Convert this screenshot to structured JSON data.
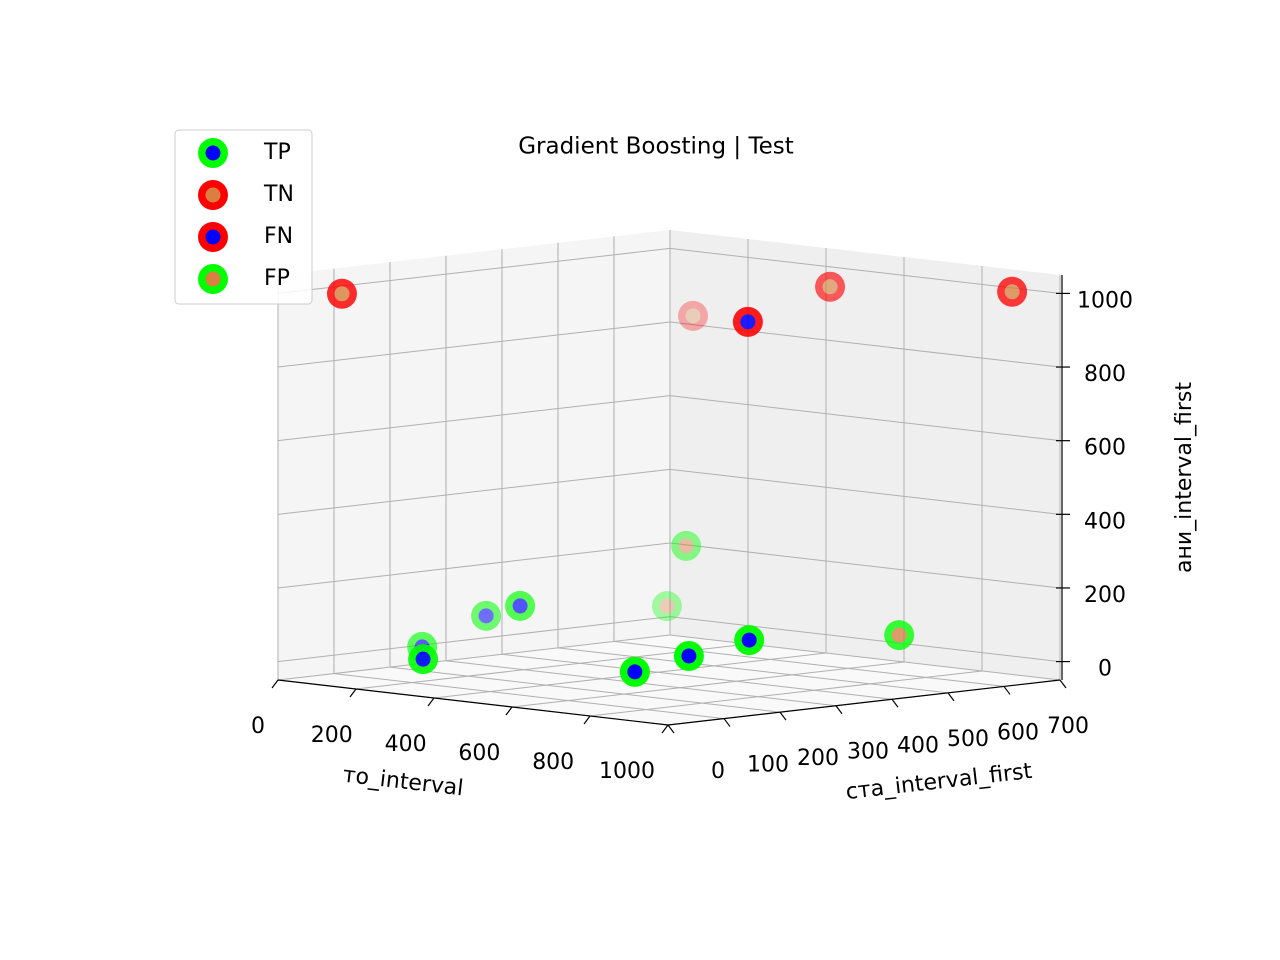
{
  "chart_data": {
    "type": "scatter3d",
    "title": "Gradient Boosting | Test",
    "xlabel": "то_interval",
    "ylabel": "ста_interval_first",
    "zlabel": "ани_interval_first",
    "xlim": [
      0,
      1000
    ],
    "ylim": [
      0,
      700
    ],
    "zlim": [
      -50,
      1050
    ],
    "xticks": [
      0,
      200,
      400,
      600,
      800,
      1000
    ],
    "yticks": [
      0,
      100,
      200,
      300,
      400,
      500,
      600,
      700
    ],
    "zticks": [
      0,
      200,
      400,
      600,
      800,
      1000
    ],
    "grid": true,
    "legend": "upper left",
    "depthshade": true,
    "series": [
      {
        "name": "TP",
        "edgecolor": "#00ff00",
        "color": "#0000ff",
        "x": [
          372,
          25,
          31,
          190,
          915,
          910,
          921
        ],
        "y": [
          0,
          240,
          350,
          300,
          0,
          100,
          200
        ],
        "z": [
          52,
          1,
          67,
          122,
          84,
          109,
          136
        ]
      },
      {
        "name": "TN",
        "edgecolor": "#ff0000",
        "color": "#d98040",
        "x": [
          164,
          59,
          554,
          949
        ],
        "y": [
          0,
          700,
          600,
          650
        ],
        "z": [
          1019,
          824,
          981,
          1007
        ]
      },
      {
        "name": "FN",
        "edgecolor": "#ff0000",
        "color": "#0000ff",
        "x": [
          774
        ],
        "y": [
          300
        ],
        "z": [
          965
        ]
      },
      {
        "name": "FP",
        "edgecolor": "#00ff00",
        "color": "#d98040",
        "x": [
          185,
          64,
          803
        ],
        "y": [
          600,
          650,
          550
        ],
        "z": [
          232,
          45,
          74
        ]
      }
    ]
  }
}
